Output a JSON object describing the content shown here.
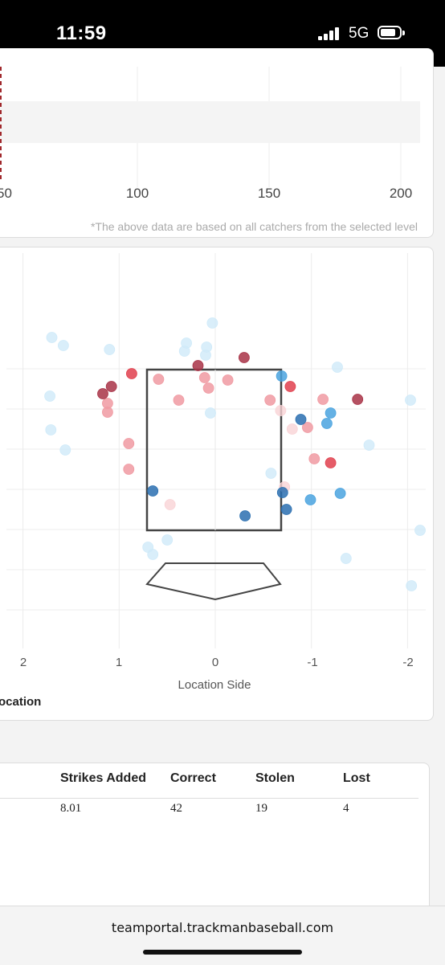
{
  "status_bar": {
    "time": "11:59",
    "network": "5G",
    "icons": [
      "signal-icon",
      "battery-icon"
    ]
  },
  "top_chart": {
    "type": "bar",
    "tick_labels": [
      "50",
      "100",
      "150",
      "200"
    ],
    "footnote": "*The above data are based on all catchers from the selected level"
  },
  "chart_data": {
    "type": "scatter",
    "xlabel": "Location Side",
    "x_tick_labels": [
      "2",
      "1",
      "0",
      "-1",
      "-2"
    ],
    "title_partial": "ocation",
    "xlim": [
      2.2,
      -2.2
    ],
    "ylim": [
      0.3,
      4.1
    ],
    "colors": {
      "dark_red": "#a83246",
      "red": "#e0404d",
      "pink": "#f09aa2",
      "light_pink": "#f9d3d6",
      "dark_blue": "#2a6fb0",
      "blue": "#4aa3df",
      "light_blue": "#cfeaf9"
    },
    "points": [
      {
        "x": 1.7,
        "y": 3.9,
        "c": "light_blue"
      },
      {
        "x": 1.58,
        "y": 3.8,
        "c": "light_blue"
      },
      {
        "x": 1.1,
        "y": 3.75,
        "c": "light_blue"
      },
      {
        "x": 0.3,
        "y": 3.83,
        "c": "light_blue"
      },
      {
        "x": 0.32,
        "y": 3.73,
        "c": "light_blue"
      },
      {
        "x": 0.09,
        "y": 3.78,
        "c": "light_blue"
      },
      {
        "x": 0.1,
        "y": 3.68,
        "c": "light_blue"
      },
      {
        "x": 0.03,
        "y": 4.08,
        "c": "light_blue"
      },
      {
        "x": -1.27,
        "y": 3.53,
        "c": "light_blue"
      },
      {
        "x": 1.72,
        "y": 3.17,
        "c": "light_blue"
      },
      {
        "x": 1.71,
        "y": 2.75,
        "c": "light_blue"
      },
      {
        "x": 1.56,
        "y": 2.5,
        "c": "light_blue"
      },
      {
        "x": -2.03,
        "y": 3.12,
        "c": "light_blue"
      },
      {
        "x": -1.6,
        "y": 2.56,
        "c": "light_blue"
      },
      {
        "x": 0.05,
        "y": 2.96,
        "c": "light_blue"
      },
      {
        "x": -0.58,
        "y": 2.21,
        "c": "light_blue"
      },
      {
        "x": 0.5,
        "y": 1.38,
        "c": "light_blue"
      },
      {
        "x": 0.7,
        "y": 1.29,
        "c": "light_blue"
      },
      {
        "x": 0.65,
        "y": 1.2,
        "c": "light_blue"
      },
      {
        "x": -1.36,
        "y": 1.15,
        "c": "light_blue"
      },
      {
        "x": -2.13,
        "y": 1.5,
        "c": "light_blue"
      },
      {
        "x": -2.04,
        "y": 0.81,
        "c": "light_blue"
      },
      {
        "x": -1.2,
        "y": 2.96,
        "c": "blue"
      },
      {
        "x": -1.16,
        "y": 2.83,
        "c": "blue"
      },
      {
        "x": -0.69,
        "y": 3.42,
        "c": "blue"
      },
      {
        "x": -1.3,
        "y": 1.96,
        "c": "blue"
      },
      {
        "x": -0.99,
        "y": 1.88,
        "c": "blue"
      },
      {
        "x": -0.89,
        "y": 2.88,
        "c": "dark_blue"
      },
      {
        "x": 0.65,
        "y": 1.99,
        "c": "dark_blue"
      },
      {
        "x": -0.7,
        "y": 1.97,
        "c": "dark_blue"
      },
      {
        "x": -0.74,
        "y": 1.76,
        "c": "dark_blue"
      },
      {
        "x": -0.31,
        "y": 1.68,
        "c": "dark_blue"
      },
      {
        "x": -0.3,
        "y": 3.65,
        "c": "dark_red"
      },
      {
        "x": 0.18,
        "y": 3.55,
        "c": "dark_red"
      },
      {
        "x": 1.08,
        "y": 3.29,
        "c": "dark_red"
      },
      {
        "x": 1.17,
        "y": 3.2,
        "c": "dark_red"
      },
      {
        "x": -1.48,
        "y": 3.13,
        "c": "dark_red"
      },
      {
        "x": 0.87,
        "y": 3.45,
        "c": "red"
      },
      {
        "x": -0.78,
        "y": 3.29,
        "c": "red"
      },
      {
        "x": -1.2,
        "y": 2.34,
        "c": "red"
      },
      {
        "x": 0.59,
        "y": 3.38,
        "c": "pink"
      },
      {
        "x": 0.11,
        "y": 3.4,
        "c": "pink"
      },
      {
        "x": -0.13,
        "y": 3.37,
        "c": "pink"
      },
      {
        "x": 0.07,
        "y": 3.27,
        "c": "pink"
      },
      {
        "x": -1.12,
        "y": 3.13,
        "c": "pink"
      },
      {
        "x": 1.12,
        "y": 3.08,
        "c": "pink"
      },
      {
        "x": 1.12,
        "y": 2.97,
        "c": "pink"
      },
      {
        "x": 0.9,
        "y": 2.58,
        "c": "pink"
      },
      {
        "x": 0.9,
        "y": 2.26,
        "c": "pink"
      },
      {
        "x": -0.96,
        "y": 2.78,
        "c": "pink"
      },
      {
        "x": -1.03,
        "y": 2.39,
        "c": "pink"
      },
      {
        "x": 0.38,
        "y": 3.12,
        "c": "pink"
      },
      {
        "x": -0.57,
        "y": 3.12,
        "c": "pink"
      },
      {
        "x": -0.68,
        "y": 2.99,
        "c": "light_pink"
      },
      {
        "x": -0.8,
        "y": 2.76,
        "c": "light_pink"
      },
      {
        "x": -0.72,
        "y": 2.04,
        "c": "light_pink"
      },
      {
        "x": 0.47,
        "y": 1.82,
        "c": "light_pink"
      }
    ]
  },
  "table": {
    "headers": [
      "Strikes Added",
      "Correct",
      "Stolen",
      "Lost"
    ],
    "values": [
      "8.01",
      "42",
      "19",
      "4"
    ]
  },
  "browser": {
    "url": "teamportal.trackmanbaseball.com"
  }
}
